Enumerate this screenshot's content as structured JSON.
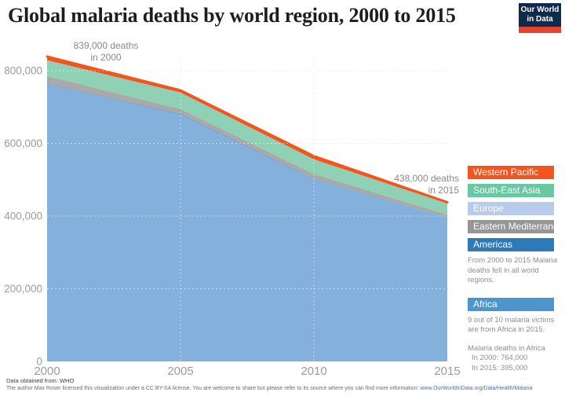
{
  "header": {
    "title": "Global malaria deaths by world region, 2000 to 2015",
    "logo": {
      "line1": "Our World",
      "line2": "in Data",
      "navy": "#0e2a4e",
      "red": "#e8432e"
    }
  },
  "chart_data": {
    "type": "area",
    "stacked": true,
    "title": "Global malaria deaths by world region, 2000 to 2015",
    "x": [
      2000,
      2005,
      2010,
      2015
    ],
    "x_ticks": [
      "2000",
      "2005",
      "2010",
      "2015"
    ],
    "grid_years": [
      2005,
      2010
    ],
    "y_ticks": [
      {
        "value": 0,
        "label": "0"
      },
      {
        "value": 200000,
        "label": "200,000"
      },
      {
        "value": 400000,
        "label": "400,000"
      },
      {
        "value": 600000,
        "label": "600,000"
      },
      {
        "value": 800000,
        "label": "800,000"
      }
    ],
    "ylim": [
      0,
      870000
    ],
    "xlabel": "",
    "ylabel": "",
    "grid": true,
    "legend_position": "right",
    "series": [
      {
        "id": "africa",
        "name": "Africa",
        "area_color": "#84b1dc",
        "legend_color": "#4c96d0",
        "values": [
          764000,
          680000,
          502000,
          395000
        ]
      },
      {
        "id": "americas",
        "name": "Americas",
        "area_color": "#2e79b8",
        "legend_color": "#2e79b8",
        "values": [
          1000,
          1000,
          1000,
          500
        ]
      },
      {
        "id": "eastern-mediterranean",
        "name": "Eastern Mediterranean",
        "area_color": "#a9a9a9",
        "legend_color": "#969696",
        "values": [
          20000,
          14000,
          13000,
          8000
        ]
      },
      {
        "id": "europe",
        "name": "Europe",
        "area_color": "#b7cbed",
        "legend_color": "#b7cbed",
        "values": [
          0,
          0,
          0,
          0
        ]
      },
      {
        "id": "south-east-asia",
        "name": "South-East Asia",
        "area_color": "#8fd1b5",
        "legend_color": "#68c8a4",
        "values": [
          44000,
          45000,
          40000,
          31000
        ]
      },
      {
        "id": "western-pacific",
        "name": "Western Pacific",
        "area_color": "#f4551e",
        "legend_color": "#f4551e",
        "values": [
          10000,
          6000,
          9000,
          3500
        ]
      }
    ],
    "totals": {
      "2000": 839000,
      "2015": 438000
    },
    "annotations": [
      {
        "line1": "839,000 deaths",
        "line2": "in 2000"
      },
      {
        "line1": "438,000 deaths",
        "line2": "in 2015"
      }
    ]
  },
  "legend": {
    "items": [
      {
        "label": "Western Pacific",
        "color": "#f4551e"
      },
      {
        "label": "South-East Asia",
        "color": "#68c8a4"
      },
      {
        "label": "Europe",
        "color": "#b7cbed"
      },
      {
        "label": "Eastern Mediterranean",
        "color": "#969696"
      },
      {
        "label": "Americas",
        "color": "#2e79b8"
      }
    ],
    "note": "From 2000 to 2015 Malaria deaths fell in all world regions.",
    "africa": {
      "label": "Africa",
      "color": "#4c96d0"
    },
    "africa_note": "9 out of 10 malaria victims are from Africa in 2015.",
    "africa_stats": [
      "Malaria deaths in Africa",
      "In 2000: 764,000",
      "In 2015: 395,000"
    ]
  },
  "footer": {
    "line1": "Data obtained from: WHO",
    "line2_prefix": "The author Max Roser licensed this visualization under a CC BY-SA license. You are welcome to share but please refer to its source where you can find more information: ",
    "link": "www.OurWorldInData.org/Data/Health/Malaria"
  }
}
